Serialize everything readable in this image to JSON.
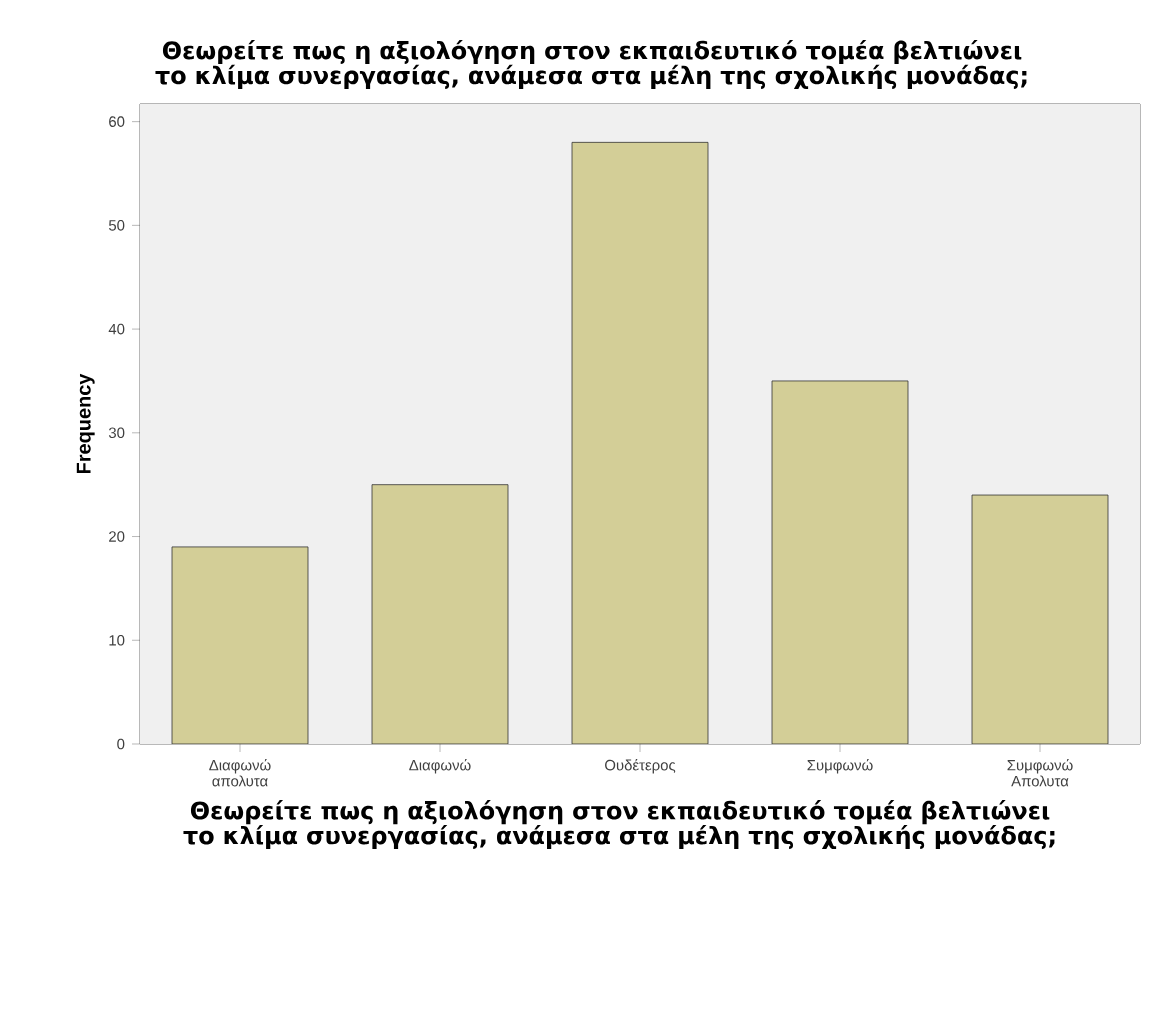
{
  "chart_data": {
    "type": "bar",
    "title": "Θεωρείτε πως η αξιολόγηση στον εκπαιδευτικό τομέα βελτιώνει το κλίμα συνεργασίας, ανάμεσα στα μέλη της σχολικής μονάδας;",
    "xlabel": "Θεωρείτε πως η αξιολόγηση στον εκπαιδευτικό τομέα βελτιώνει το κλίμα συνεργασίας, ανάμεσα στα μέλη της σχολικής μονάδας;",
    "ylabel": "Frequency",
    "categories": [
      "Διαφωνώ απολυτα",
      "Διαφωνώ",
      "Ουδέτερος",
      "Συμφωνώ",
      "Συμφωνώ Απολυτα"
    ],
    "values": [
      19,
      25,
      58,
      35,
      24
    ],
    "color": "#d3ce97",
    "ylim": [
      0,
      61.7
    ],
    "yticks": [
      0,
      10,
      20,
      30,
      40,
      50,
      60
    ],
    "grid": false
  }
}
